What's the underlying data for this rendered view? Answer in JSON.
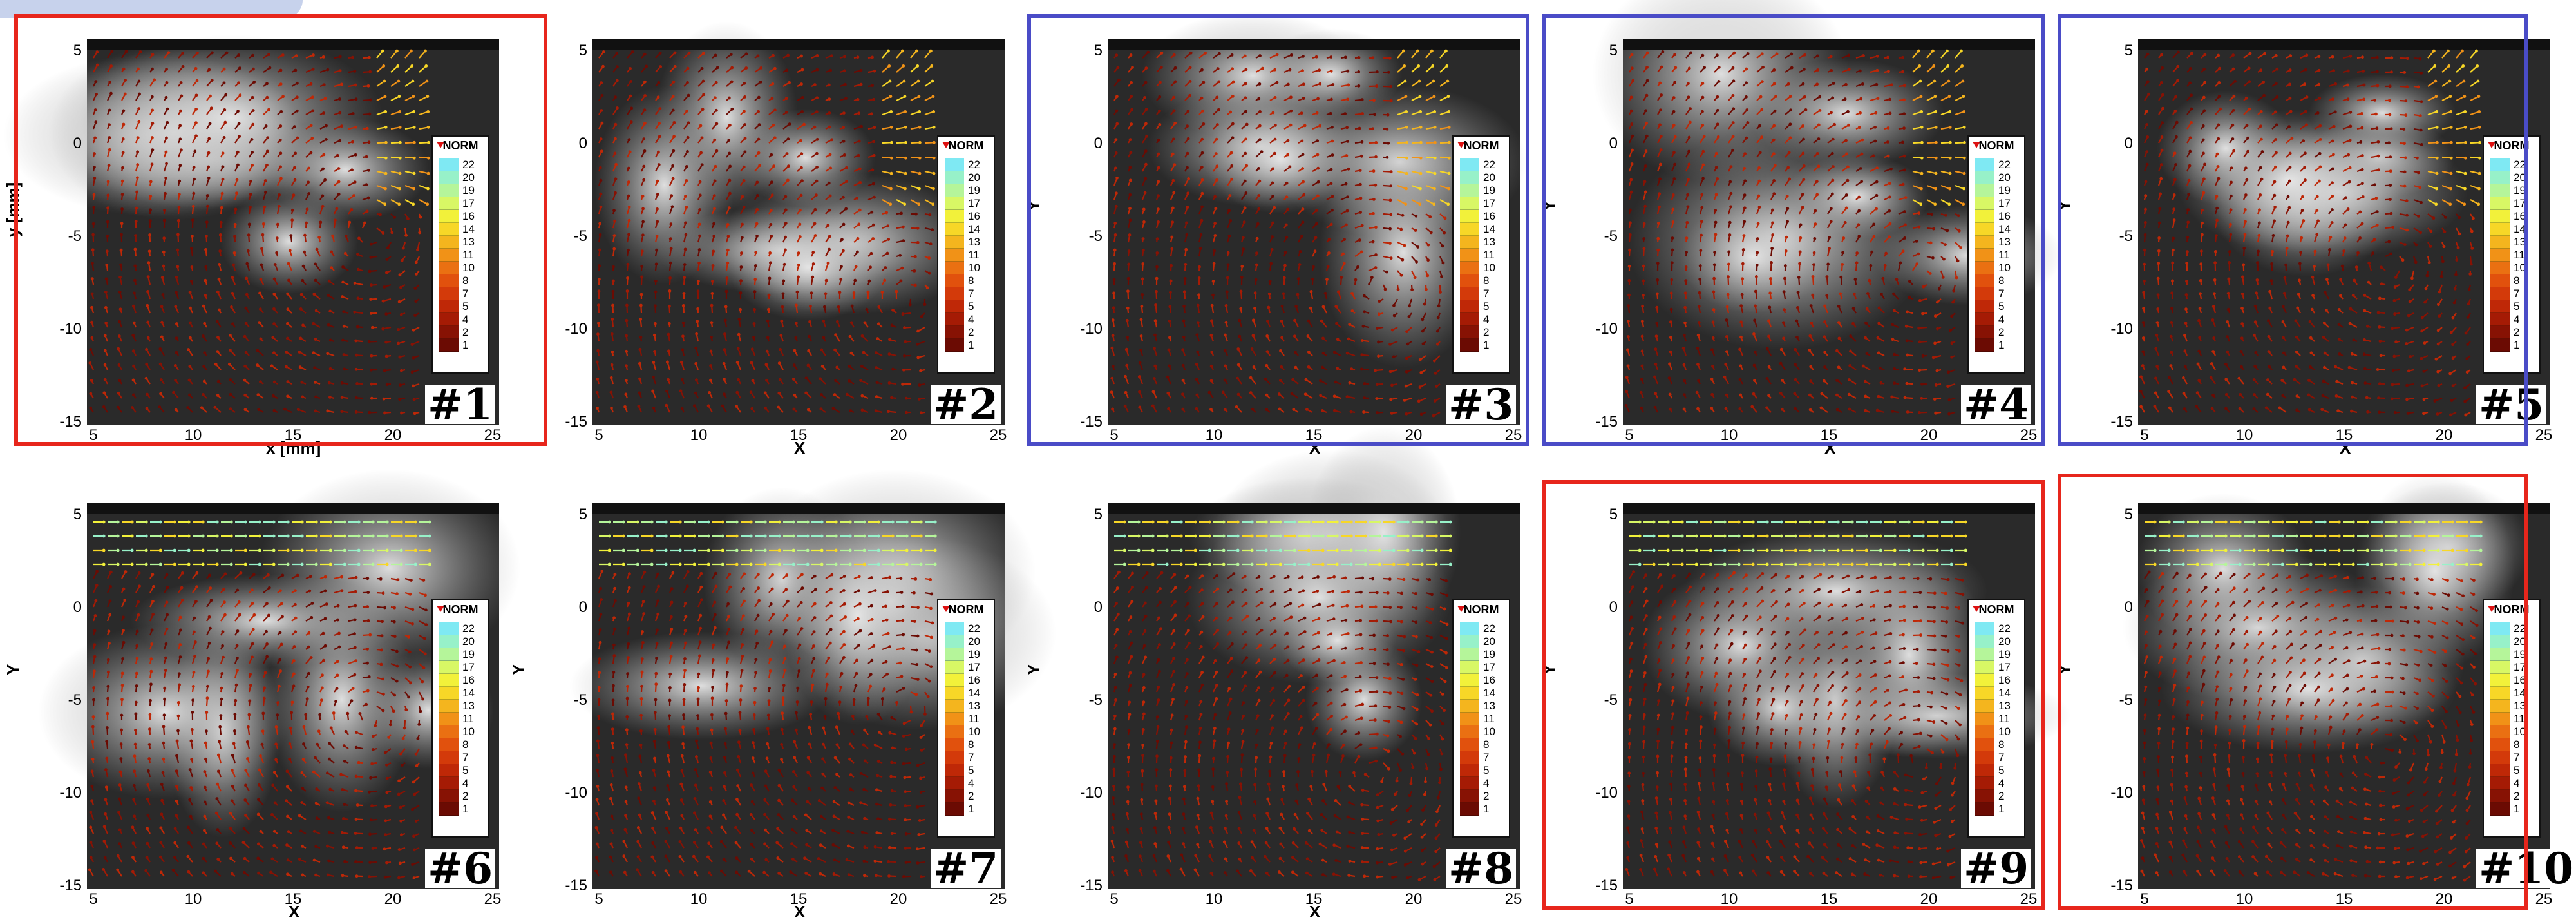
{
  "legend": {
    "title": "NORM",
    "levels": [
      "22",
      "20",
      "19",
      "17",
      "16",
      "14",
      "13",
      "11",
      "10",
      "8",
      "7",
      "5",
      "4",
      "2",
      "1"
    ],
    "colors": [
      "#7fe9f3",
      "#97f1c9",
      "#b5f59a",
      "#d8f765",
      "#f2f13a",
      "#f7d727",
      "#f4b51e",
      "#f19217",
      "#ea7012",
      "#e1510d",
      "#d33a0a",
      "#bf2807",
      "#a51b05",
      "#871204",
      "#6b0b03"
    ]
  },
  "axes": {
    "y_ticks": [
      "5",
      "0",
      "-5",
      "-10",
      "-15"
    ],
    "x_ticks": [
      "5",
      "10",
      "15",
      "20",
      "25"
    ]
  },
  "panels": [
    {
      "id": "p1",
      "label": "#1",
      "frame": "red",
      "ylabel": "y [mm]",
      "xlabel": "x [mm]"
    },
    {
      "id": "p2",
      "label": "#2",
      "frame": "none",
      "ylabel": "",
      "xlabel": "X"
    },
    {
      "id": "p3",
      "label": "#3",
      "frame": "blue",
      "ylabel": "Y",
      "xlabel": "X"
    },
    {
      "id": "p4",
      "label": "#4",
      "frame": "blue",
      "ylabel": "Y",
      "xlabel": "X"
    },
    {
      "id": "p5",
      "label": "#5",
      "frame": "blue",
      "ylabel": "Y",
      "xlabel": "X"
    },
    {
      "id": "p6",
      "label": "#6",
      "frame": "none",
      "ylabel": "Y",
      "xlabel": "X"
    },
    {
      "id": "p7",
      "label": "#7",
      "frame": "none",
      "ylabel": "Y",
      "xlabel": "X"
    },
    {
      "id": "p8",
      "label": "#8",
      "frame": "none",
      "ylabel": "Y",
      "xlabel": "X"
    },
    {
      "id": "p9",
      "label": "#9",
      "frame": "red",
      "ylabel": "Y",
      "xlabel": ""
    },
    {
      "id": "p10",
      "label": "#10",
      "frame": "red",
      "ylabel": "Y",
      "xlabel": ""
    }
  ],
  "colors": {
    "red_frame": "#e7261c",
    "blue_frame": "#4a4cc7"
  }
}
